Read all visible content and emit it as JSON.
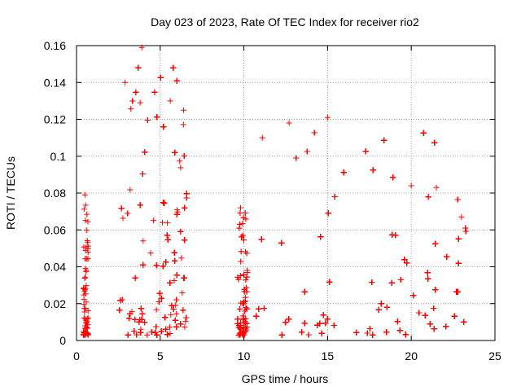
{
  "chart_data": {
    "type": "scatter",
    "title": "Day 023 of 2023, Rate Of TEC Index for receiver rio2",
    "xlabel": "GPS time / hours",
    "ylabel": "ROTI / TECUs",
    "xlim": [
      0,
      25
    ],
    "ylim": [
      0,
      0.16
    ],
    "xticks": [
      "0",
      "5",
      "10",
      "15",
      "20",
      "25"
    ],
    "yticks": [
      "0",
      "0.02",
      "0.04",
      "0.06",
      "0.08",
      "0.1",
      "0.12",
      "0.14",
      "0.16"
    ],
    "grid": true,
    "marker": "plus",
    "color": "#ff0000",
    "segments": [
      {
        "start": 0.4,
        "end": 0.7,
        "max": 0.079
      },
      {
        "start": 2.5,
        "end": 6.6,
        "max": 0.16
      },
      {
        "start": 9.6,
        "end": 10.2,
        "max": 0.073
      },
      {
        "start": 10.5,
        "end": 23.3,
        "max": 0.121
      }
    ],
    "notable_points": [
      {
        "x": 3.9,
        "y": 0.159
      },
      {
        "x": 2.9,
        "y": 0.14
      },
      {
        "x": 5.6,
        "y": 0.13
      },
      {
        "x": 3.8,
        "y": 0.129
      },
      {
        "x": 6.4,
        "y": 0.125
      },
      {
        "x": 15.0,
        "y": 0.121
      },
      {
        "x": 12.7,
        "y": 0.118
      },
      {
        "x": 11.1,
        "y": 0.11
      },
      {
        "x": 0.5,
        "y": 0.079
      },
      {
        "x": 9.8,
        "y": 0.072
      },
      {
        "x": 20.0,
        "y": 0.084
      },
      {
        "x": 21.5,
        "y": 0.083
      },
      {
        "x": 23.0,
        "y": 0.067
      }
    ]
  }
}
